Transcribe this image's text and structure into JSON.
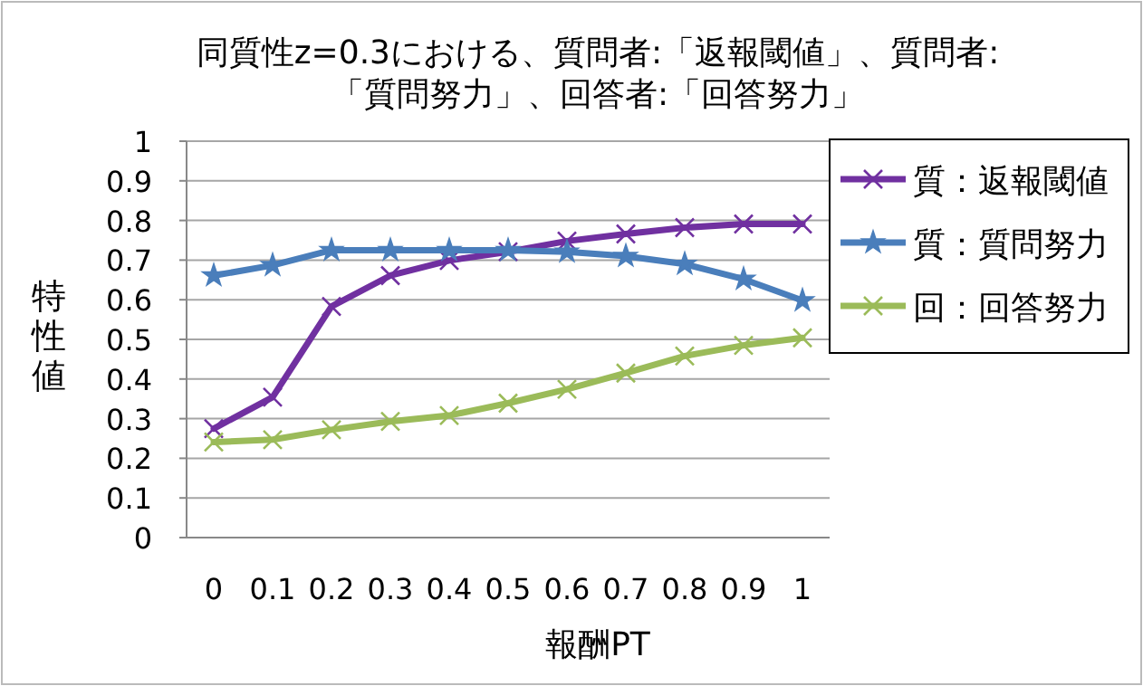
{
  "chart_data": {
    "type": "line",
    "title": "同質性z=0.3における、質問者:「返報閾値」、質問者:「質問努力」、回答者:「回答努力」",
    "xlabel": "報酬PT",
    "ylabel": "特性値",
    "categories": [
      "0",
      "0.1",
      "0.2",
      "0.3",
      "0.4",
      "0.5",
      "0.6",
      "0.7",
      "0.8",
      "0.9",
      "1"
    ],
    "ylim": [
      0,
      1
    ],
    "yticks": [
      0,
      0.1,
      0.2,
      0.3,
      0.4,
      0.5,
      0.6,
      0.7,
      0.8,
      0.9,
      1
    ],
    "grid": "y",
    "legend": "right",
    "series": [
      {
        "name": "質：返報閾値",
        "color": "#7030a0",
        "marker": "cross",
        "values": [
          0.275,
          0.354,
          0.583,
          0.661,
          0.699,
          0.721,
          0.748,
          0.766,
          0.782,
          0.791,
          0.791
        ]
      },
      {
        "name": "質：質問努力",
        "color": "#4a7ebb",
        "marker": "star",
        "values": [
          0.661,
          0.687,
          0.725,
          0.725,
          0.725,
          0.725,
          0.721,
          0.71,
          0.69,
          0.652,
          0.598
        ]
      },
      {
        "name": "回：回答努力",
        "color": "#9bbb59",
        "marker": "cross",
        "values": [
          0.241,
          0.247,
          0.272,
          0.293,
          0.308,
          0.339,
          0.374,
          0.415,
          0.458,
          0.485,
          0.504
        ]
      }
    ]
  }
}
